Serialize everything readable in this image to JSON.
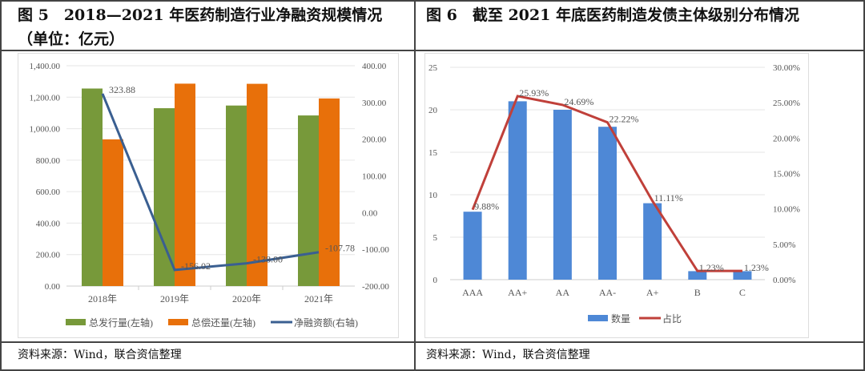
{
  "titles": {
    "left": "图 5　2018—2021 年医药制造行业净融资规模情况（单位：亿元）",
    "right": "图 6　截至 2021 年底医药制造发债主体级别分布情况"
  },
  "footers": {
    "left": "资料来源：Wind，联合资信整理",
    "right": "资料来源：Wind，联合资信整理"
  },
  "chart_data": [
    {
      "type": "bar+line",
      "categories": [
        "2018年",
        "2019年",
        "2020年",
        "2021年"
      ],
      "series": [
        {
          "name": "总发行量(左轴)",
          "type": "bar",
          "axis": "left",
          "color": "#77993a",
          "values": [
            1255,
            1130,
            1147,
            1084
          ]
        },
        {
          "name": "总偿还量(左轴)",
          "type": "bar",
          "axis": "left",
          "color": "#e8700a",
          "values": [
            932,
            1286,
            1285,
            1192
          ]
        },
        {
          "name": "净融资额(右轴)",
          "type": "line",
          "axis": "right",
          "color": "#3a5f91",
          "values": [
            323.88,
            -156.02,
            -138.0,
            -107.78
          ],
          "labels": [
            "323.88",
            "-156.02",
            "-138.00",
            "-107.78"
          ]
        }
      ],
      "ylim_left": [
        0,
        1400
      ],
      "yticks_left": [
        "0.00",
        "200.00",
        "400.00",
        "600.00",
        "800.00",
        "1,000.00",
        "1,200.00",
        "1,400.00"
      ],
      "ylim_right": [
        -200,
        400
      ],
      "yticks_right": [
        "-200.00",
        "-100.00",
        "0.00",
        "100.00",
        "200.00",
        "300.00",
        "400.00"
      ],
      "grid": true,
      "legend": "bottom"
    },
    {
      "type": "bar+line",
      "categories": [
        "AAA",
        "AA+",
        "AA",
        "AA-",
        "A+",
        "B",
        "C"
      ],
      "series": [
        {
          "name": "数量",
          "type": "bar",
          "axis": "left",
          "color": "#4e88d6",
          "values": [
            8,
            21,
            20,
            18,
            9,
            1,
            1
          ]
        },
        {
          "name": "占比",
          "type": "line",
          "axis": "right",
          "color": "#c0403a",
          "values": [
            9.88,
            25.93,
            24.69,
            22.22,
            11.11,
            1.23,
            1.23
          ],
          "labels": [
            "9.88%",
            "25.93%",
            "24.69%",
            "22.22%",
            "11.11%",
            "1.23%",
            "1.23%"
          ]
        }
      ],
      "ylim_left": [
        0,
        25
      ],
      "yticks_left": [
        "0",
        "5",
        "10",
        "15",
        "20",
        "25"
      ],
      "ylim_right": [
        0,
        30
      ],
      "yticks_right": [
        "0.00%",
        "5.00%",
        "10.00%",
        "15.00%",
        "20.00%",
        "25.00%",
        "30.00%"
      ],
      "grid": true,
      "legend": "bottom"
    }
  ]
}
